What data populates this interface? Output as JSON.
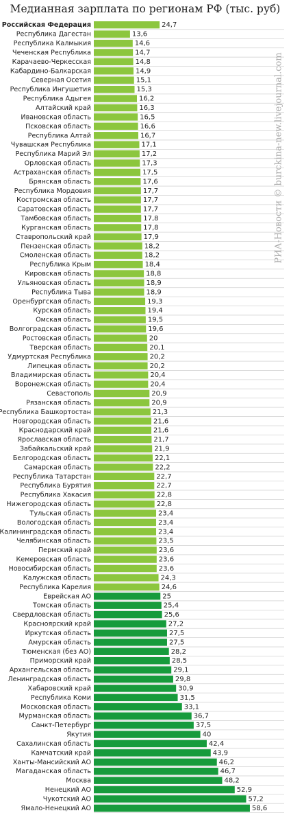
{
  "chart_data": {
    "type": "bar",
    "orientation": "horizontal",
    "title": "Медианная зарплата по регионам РФ (тыс. руб)",
    "watermark": "РИА-Новости © burckina-new.livejournal.com",
    "grid": true,
    "categories": [
      "Российская Федерация",
      "Республика Дагестан",
      "Республика Калмыкия",
      "Чеченская Республика",
      "Карачаево-Черкесская",
      "Кабардино-Балкарская",
      "Северная Осетия",
      "Республика Ингушетия",
      "Республика Адыгея",
      "Алтайский край",
      "Ивановская область",
      "Псковская область",
      "Республика Алтай",
      "Чувашская Республика",
      "Республика Марий Эл",
      "Орловская область",
      "Астраханская область",
      "Брянская область",
      "Республика Мордовия",
      "Костромская область",
      "Саратовская область",
      "Тамбовская область",
      "Курганская область",
      "Ставропольский край",
      "Пензенская область",
      "Смоленская область",
      "Республика Крым",
      "Кировская область",
      "Ульяновская область",
      "Республика Тыва",
      "Оренбургская область",
      "Курская область",
      "Омская область",
      "Волгоградская область",
      "Ростовская область",
      "Тверская область",
      "Удмуртская Республика",
      "Липецкая область",
      "Владимирская область",
      "Воронежская область",
      "Севастополь",
      "Рязанская область",
      "Республика Башкортостан",
      "Новгородская область",
      "Краснодарский край",
      "Ярославская область",
      "Забайкальский край",
      "Белгородская область",
      "Самарская область",
      "Республика Татарстан",
      "Республика Бурятия",
      "Республика Хакасия",
      "Нижегородская область",
      "Тульская область",
      "Вологодская область",
      "Калининградская область",
      "Челябинская область",
      "Пермский край",
      "Кемеровская область",
      "Новосибирская область",
      "Калужская область",
      "Республика Карелия",
      "Еврейская АО",
      "Томская область",
      "Свердловская область",
      "Красноярский край",
      "Иркутская область",
      "Амурская область",
      "Тюменская (без АО)",
      "Приморский край",
      "Архангельская область",
      "Ленинградская область",
      "Хабаровский край",
      "Республика Коми",
      "Московская область",
      "Мурманская область",
      "Санкт-Петербург",
      "Якутия",
      "Сахалинская область",
      "Камчатский край",
      "Ханты-Мансийский АО",
      "Магаданская область",
      "Москва",
      "Ненецкий АО",
      "Чукотский АО",
      "Ямало-Ненецкий АО"
    ],
    "values": [
      24.7,
      13.6,
      14.6,
      14.7,
      14.8,
      14.9,
      15.1,
      15.3,
      16.2,
      16.3,
      16.5,
      16.6,
      16.7,
      17.1,
      17.2,
      17.3,
      17.5,
      17.6,
      17.7,
      17.7,
      17.7,
      17.8,
      17.8,
      17.9,
      18.2,
      18.2,
      18.4,
      18.8,
      18.9,
      18.9,
      19.3,
      19.4,
      19.5,
      19.6,
      20,
      20.1,
      20.2,
      20.2,
      20.4,
      20.4,
      20.9,
      20.9,
      21.3,
      21.6,
      21.6,
      21.7,
      21.9,
      22.1,
      22.2,
      22.7,
      22.7,
      22.8,
      22.8,
      23.4,
      23.4,
      23.4,
      23.5,
      23.6,
      23.6,
      23.6,
      24.3,
      24.6,
      25,
      25.4,
      25.6,
      27.2,
      27.5,
      27.5,
      28.2,
      28.5,
      29.1,
      29.8,
      30.9,
      31.5,
      33.1,
      36.7,
      37.5,
      40,
      42.4,
      43.9,
      46.2,
      46.7,
      48.2,
      52.9,
      57.2,
      58.6
    ],
    "value_labels": [
      "24,7",
      "13,6",
      "14,6",
      "14,7",
      "14,8",
      "14,9",
      "15,1",
      "15,3",
      "16,2",
      "16,3",
      "16,5",
      "16,6",
      "16,7",
      "17,1",
      "17,2",
      "17,3",
      "17,5",
      "17,6",
      "17,7",
      "17,7",
      "17,7",
      "17,8",
      "17,8",
      "17,9",
      "18,2",
      "18,2",
      "18,4",
      "18,8",
      "18,9",
      "18,9",
      "19,3",
      "19,4",
      "19,5",
      "19,6",
      "20",
      "20,1",
      "20,2",
      "20,2",
      "20,4",
      "20,4",
      "20,9",
      "20,9",
      "21,3",
      "21,6",
      "21,6",
      "21,7",
      "21,9",
      "22,1",
      "22,2",
      "22,7",
      "22,7",
      "22,8",
      "22,8",
      "23,4",
      "23,4",
      "23,4",
      "23,5",
      "23,6",
      "23,6",
      "23,6",
      "24,3",
      "24,6",
      "25",
      "25,4",
      "25,6",
      "27,2",
      "27,5",
      "27,5",
      "28,2",
      "28,5",
      "29,1",
      "29,8",
      "30,9",
      "31,5",
      "33,1",
      "36,7",
      "37,5",
      "40",
      "42,4",
      "43,9",
      "46,2",
      "46,7",
      "48,2",
      "52,9",
      "57,2",
      "58,6"
    ],
    "colors": [
      "#8cc63e",
      "#8cc63e",
      "#8cc63e",
      "#8cc63e",
      "#8cc63e",
      "#8cc63e",
      "#8cc63e",
      "#8cc63e",
      "#8cc63e",
      "#8cc63e",
      "#8cc63e",
      "#8cc63e",
      "#8cc63e",
      "#8cc63e",
      "#8cc63e",
      "#8cc63e",
      "#8cc63e",
      "#8cc63e",
      "#8cc63e",
      "#8cc63e",
      "#8cc63e",
      "#8cc63e",
      "#8cc63e",
      "#8cc63e",
      "#8cc63e",
      "#8cc63e",
      "#8cc63e",
      "#8cc63e",
      "#8cc63e",
      "#8cc63e",
      "#8cc63e",
      "#8cc63e",
      "#8cc63e",
      "#8cc63e",
      "#8cc63e",
      "#8cc63e",
      "#8cc63e",
      "#8cc63e",
      "#8cc63e",
      "#8cc63e",
      "#8cc63e",
      "#8cc63e",
      "#8cc63e",
      "#8cc63e",
      "#8cc63e",
      "#8cc63e",
      "#8cc63e",
      "#8cc63e",
      "#8cc63e",
      "#8cc63e",
      "#8cc63e",
      "#8cc63e",
      "#8cc63e",
      "#8cc63e",
      "#8cc63e",
      "#8cc63e",
      "#8cc63e",
      "#8cc63e",
      "#8cc63e",
      "#8cc63e",
      "#8cc63e",
      "#8cc63e",
      "#179b3c",
      "#179b3c",
      "#179b3c",
      "#179b3c",
      "#179b3c",
      "#179b3c",
      "#179b3c",
      "#179b3c",
      "#179b3c",
      "#179b3c",
      "#179b3c",
      "#179b3c",
      "#179b3c",
      "#179b3c",
      "#179b3c",
      "#179b3c",
      "#179b3c",
      "#179b3c",
      "#179b3c",
      "#179b3c",
      "#179b3c",
      "#179b3c",
      "#179b3c",
      "#179b3c"
    ]
  }
}
